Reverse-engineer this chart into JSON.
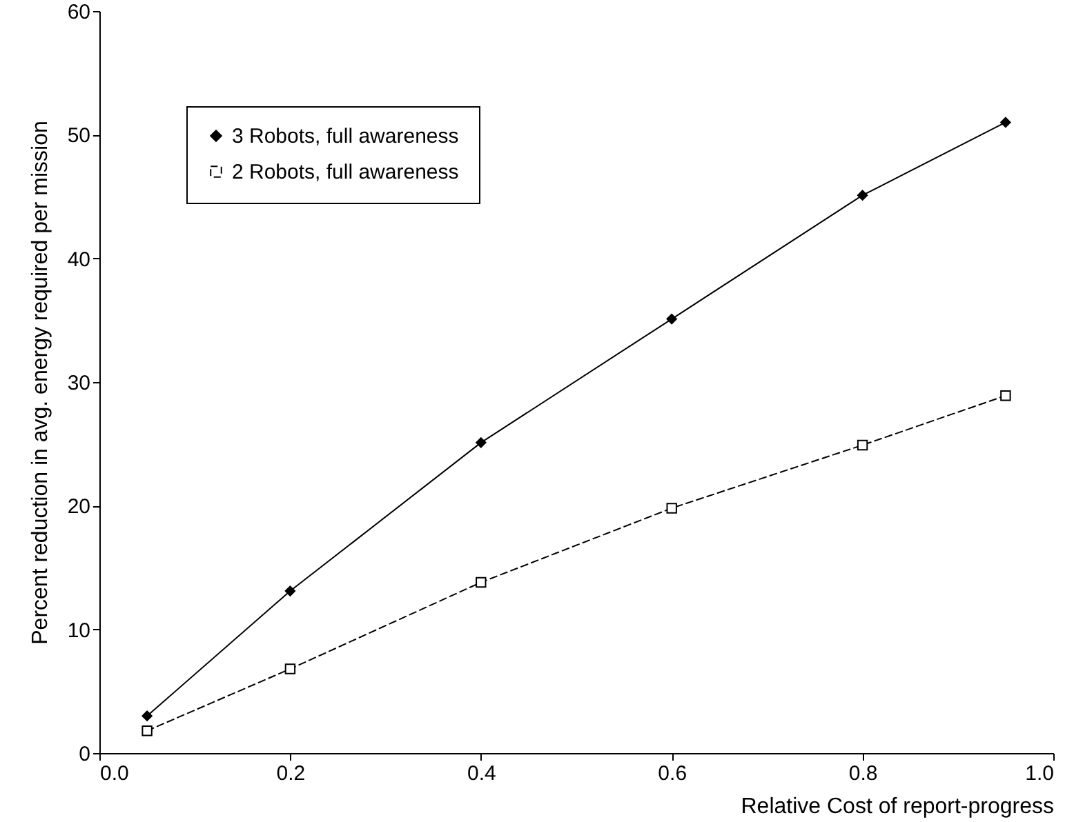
{
  "chart_data": {
    "type": "line",
    "xlabel": "Relative Cost of report-progress",
    "ylabel": "Percent reduction in avg. energy required per mission",
    "x": [
      0.05,
      0.2,
      0.4,
      0.6,
      0.8,
      0.95
    ],
    "series": [
      {
        "name": "3 Robots, full awareness",
        "color": "#000000",
        "marker": "diamond",
        "line_style": "solid",
        "values": [
          3,
          13.1,
          25.1,
          35.1,
          45.1,
          51
        ]
      },
      {
        "name": "2 Robots, full awareness",
        "color": "#000000",
        "marker": "square",
        "line_style": "dashed",
        "values": [
          1.8,
          6.8,
          13.8,
          19.8,
          24.9,
          28.9
        ]
      }
    ],
    "xlim": [
      0,
      1
    ],
    "xticks": [
      {
        "value": 0,
        "label": "0.0"
      },
      {
        "value": 0.2,
        "label": "0.2"
      },
      {
        "value": 0.4,
        "label": "0.4"
      },
      {
        "value": 0.6,
        "label": "0.6"
      },
      {
        "value": 0.8,
        "label": "0.8"
      },
      {
        "value": 1,
        "label": "1.0"
      }
    ],
    "ylim": [
      0,
      60
    ],
    "yticks": [
      0,
      10,
      20,
      30,
      40,
      50,
      60
    ],
    "grid": false,
    "legend": "top left"
  }
}
